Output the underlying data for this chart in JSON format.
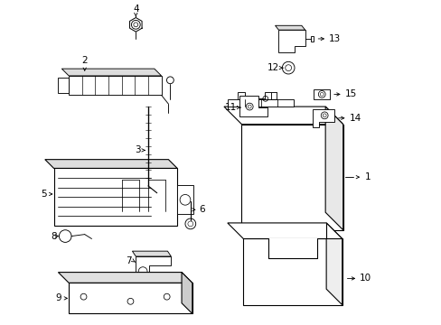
{
  "bg_color": "#ffffff",
  "line_color": "#000000",
  "gray_color": "#888888",
  "lw": 0.8,
  "fs": 7.5
}
